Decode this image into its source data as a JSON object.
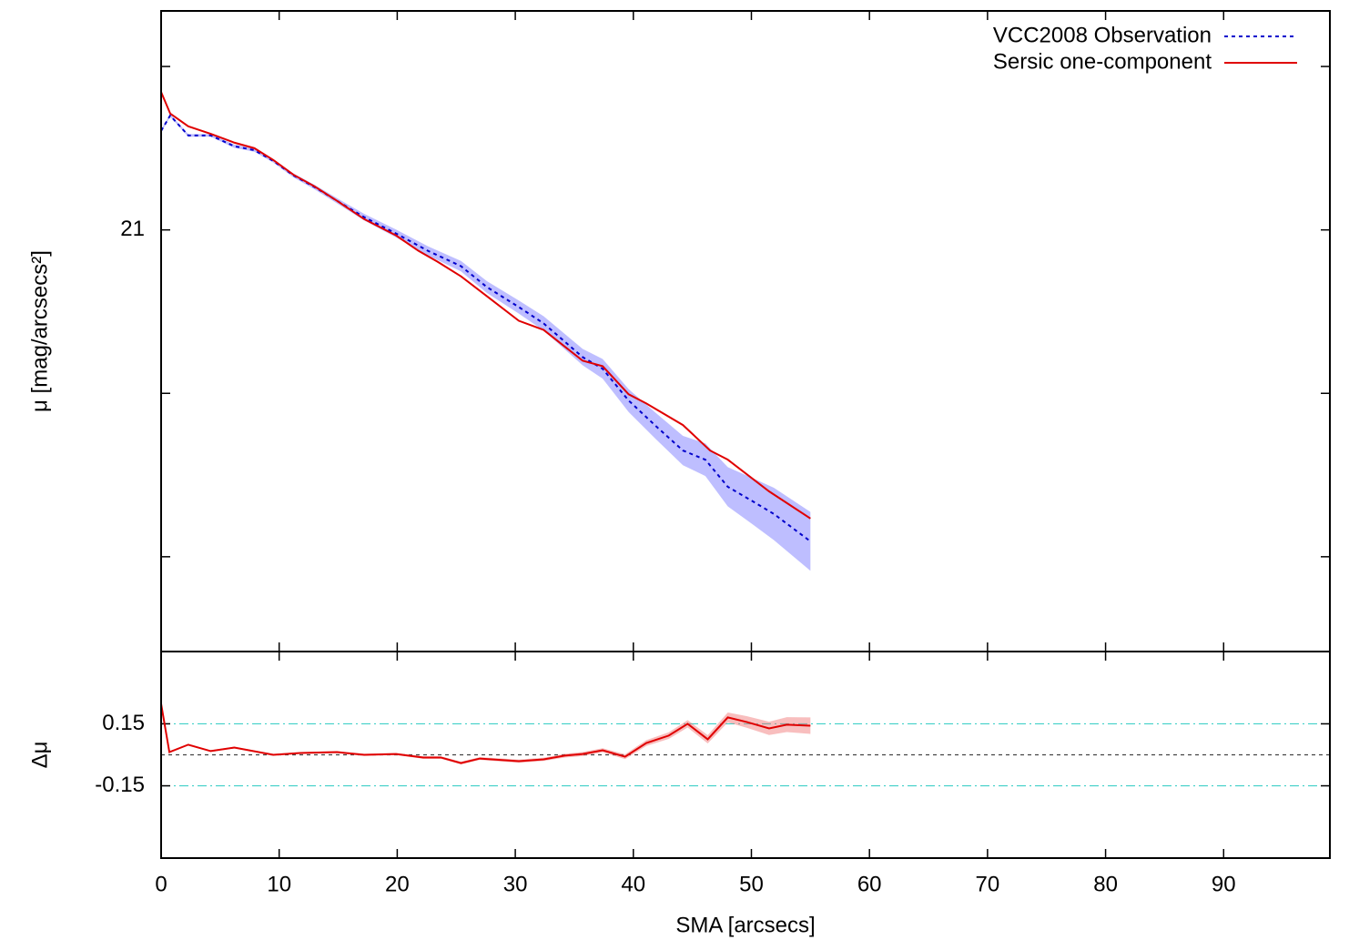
{
  "chart_data": [
    {
      "type": "line",
      "ylabel": "μ [mag/arcsecs²]",
      "legend": "top right",
      "xlim": [
        0,
        99
      ],
      "xticks": [
        0,
        10,
        20,
        30,
        40,
        50,
        60,
        70,
        80,
        90
      ],
      "ylim": [
        22.29,
        20.33
      ],
      "yticks": [
        21
      ],
      "ytick_marks": [
        20.5,
        21.5,
        22
      ],
      "series": [
        {
          "name": "VCC2008 Observation",
          "color": "#0000cc",
          "style": "dotted",
          "band_color": "rgba(110,110,255,0.45)",
          "x": [
            0,
            0.77,
            2.3,
            4.2,
            6.2,
            7.9,
            9.5,
            11.2,
            13.0,
            14.9,
            17.2,
            19.9,
            22.6,
            25.4,
            27.6,
            30.3,
            32.4,
            35.7,
            37.4,
            39.6,
            41.9,
            44.2,
            46.1,
            48.0,
            50.0,
            51.9,
            55.0
          ],
          "values": [
            20.697,
            20.65,
            20.711,
            20.711,
            20.744,
            20.756,
            20.789,
            20.833,
            20.869,
            20.911,
            20.961,
            21.011,
            21.064,
            21.111,
            21.175,
            21.236,
            21.286,
            21.389,
            21.425,
            21.522,
            21.6,
            21.675,
            21.703,
            21.786,
            21.828,
            21.869,
            21.953
          ],
          "errors": [
            0.004,
            0.004,
            0.004,
            0.004,
            0.005,
            0.005,
            0.005,
            0.006,
            0.007,
            0.008,
            0.01,
            0.012,
            0.014,
            0.016,
            0.018,
            0.02,
            0.022,
            0.025,
            0.03,
            0.035,
            0.04,
            0.045,
            0.05,
            0.06,
            0.07,
            0.08,
            0.09
          ]
        },
        {
          "name": "Sersic one-component",
          "color": "#e00000",
          "style": "solid",
          "x": [
            0,
            0.77,
            2.3,
            4.2,
            6.2,
            7.9,
            9.5,
            11.2,
            13.0,
            14.9,
            17.2,
            19.9,
            21.8,
            23.4,
            25.4,
            27.6,
            30.3,
            32.4,
            35.7,
            37.4,
            39.6,
            41.1,
            44.2,
            46.5,
            48.0,
            51.5,
            55.0
          ],
          "values": [
            20.578,
            20.644,
            20.683,
            20.706,
            20.733,
            20.75,
            20.786,
            20.831,
            20.867,
            20.911,
            20.967,
            21.017,
            21.064,
            21.097,
            21.142,
            21.203,
            21.278,
            21.306,
            21.4,
            21.417,
            21.503,
            21.531,
            21.597,
            21.675,
            21.703,
            21.8,
            21.883
          ]
        }
      ]
    },
    {
      "type": "line",
      "ylabel": "Δμ",
      "xlabel": "SMA [arcsecs]",
      "xlim": [
        0,
        99
      ],
      "xticks": [
        0,
        10,
        20,
        30,
        40,
        50,
        60,
        70,
        80,
        90
      ],
      "ylim": [
        -0.5,
        0.5
      ],
      "yticks": [
        0.15,
        -0.15
      ],
      "hlines": [
        {
          "value": 0.15,
          "color": "#40d0c8",
          "style": "dashdot"
        },
        {
          "value": -0.15,
          "color": "#40d0c8",
          "style": "dashdot"
        },
        {
          "value": 0,
          "color": "#444",
          "style": "dotted"
        }
      ],
      "series": [
        {
          "color": "#e00000",
          "style": "solid",
          "band_color": "rgba(240,110,110,0.45)",
          "x": [
            0,
            0.7,
            2.3,
            4.2,
            6.2,
            9.5,
            11.8,
            14.9,
            17.2,
            19.9,
            22.2,
            23.7,
            25.4,
            27.0,
            30.3,
            32.4,
            34.2,
            35.7,
            37.4,
            39.3,
            41.1,
            43.0,
            44.6,
            46.3,
            48.0,
            49.6,
            51.5,
            53.0,
            55.0
          ],
          "values": [
            0.247,
            0.013,
            0.049,
            0.018,
            0.035,
            0,
            0.009,
            0.013,
            0,
            0.004,
            -0.013,
            -0.013,
            -0.04,
            -0.018,
            -0.031,
            -0.022,
            -0.004,
            0.004,
            0.022,
            -0.009,
            0.057,
            0.093,
            0.15,
            0.075,
            0.181,
            0.159,
            0.128,
            0.146,
            0.141
          ],
          "errors": [
            0.004,
            0.004,
            0.004,
            0.004,
            0.004,
            0.004,
            0.004,
            0.005,
            0.005,
            0.005,
            0.006,
            0.006,
            0.007,
            0.007,
            0.008,
            0.008,
            0.009,
            0.01,
            0.01,
            0.012,
            0.014,
            0.016,
            0.018,
            0.02,
            0.024,
            0.028,
            0.032,
            0.036,
            0.04
          ]
        }
      ]
    }
  ]
}
